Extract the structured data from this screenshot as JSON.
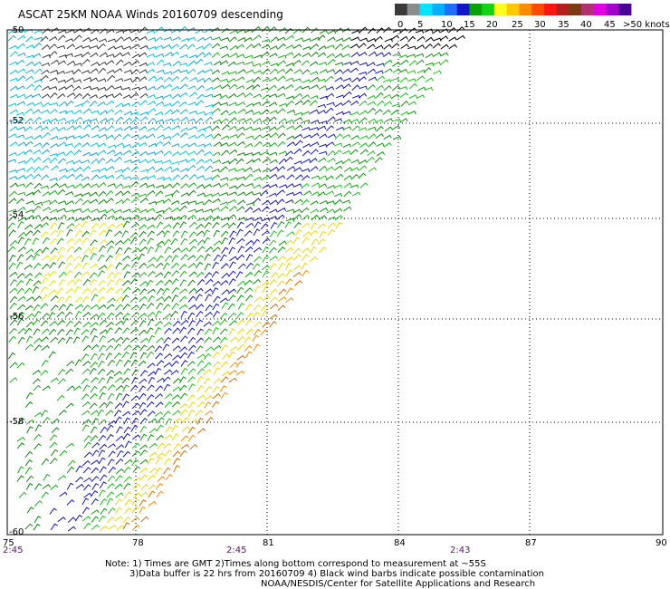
{
  "title": "ASCAT 25KM NOAA Winds 20160709 descending",
  "colorbar": {
    "colors": [
      "#3a3a3a",
      "#8c8c8c",
      "#00e5ff",
      "#00b0ff",
      "#1f6fff",
      "#1414c8",
      "#0aa00a",
      "#14d214",
      "#ffff1e",
      "#ffc800",
      "#ff8c00",
      "#ff4b00",
      "#ff1414",
      "#b41e1e",
      "#7a3a14",
      "#b03070",
      "#e000e0",
      "#a000c8",
      "#4a0096"
    ],
    "ticks": [
      "0",
      "5",
      "10",
      "15",
      "20",
      "25",
      "30",
      "35",
      "40",
      "45",
      ">50 knots"
    ]
  },
  "lat_labels": [
    "-50",
    "-52",
    "-54",
    "-56",
    "-58",
    "-60"
  ],
  "lon_labels": [
    "75",
    "78",
    "81",
    "84",
    "87",
    "90"
  ],
  "time_labels": [
    "2:45",
    "2:45",
    "2:43"
  ],
  "notes": [
    "Note: 1) Times are GMT 2)Times along bottom correspond to measurement at ~55S",
    "3)Data buffer is 22 hrs from 20160709 4) Black wind barbs indicate possible contamination",
    "NOAA/NESDIS/Center for Satellite Applications and Research"
  ],
  "swath": {
    "lon_range": [
      75,
      90
    ],
    "lat_range": [
      -60,
      -50
    ],
    "region": "southwest corner, right edge from about 85E at 50S to 78E at 60S",
    "speed_bands_knots": [
      {
        "band": "0-5",
        "color": "#3a3a3a"
      },
      {
        "band": "5-10",
        "color": "#00e5ff"
      },
      {
        "band": "10-15",
        "color": "#1414c8"
      },
      {
        "band": "15-20",
        "color": "#14d214"
      },
      {
        "band": "20-25",
        "color": "#ffff1e"
      },
      {
        "band": "25-30",
        "color": "#ff8c00"
      }
    ]
  }
}
